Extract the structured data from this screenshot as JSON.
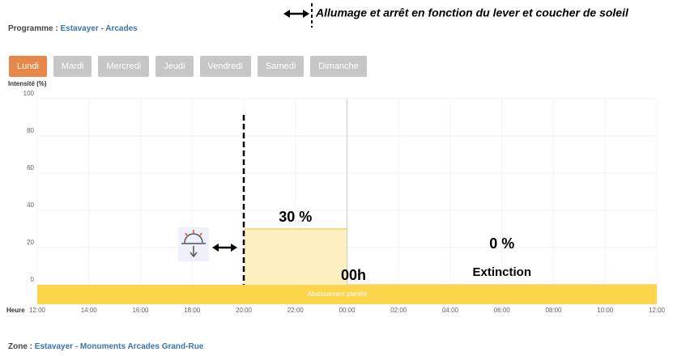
{
  "header": {
    "label": "Programme : ",
    "name": "Estavayer - Arcades"
  },
  "annotation": "Allumage et arrêt en fonction du lever et coucher de soleil",
  "days": [
    "Lundi",
    "Mardi",
    "Mercredi",
    "Jeudi",
    "Vendredi",
    "Samedi",
    "Dimanche"
  ],
  "active_day": "Lundi",
  "chart_data": {
    "type": "area",
    "ylabel": "Intensité (%)",
    "xlabel": "Heure",
    "ylim": [
      0,
      100
    ],
    "yticks": [
      0,
      20,
      40,
      60,
      80,
      100
    ],
    "xticks": [
      "12:00",
      "14:00",
      "16:00",
      "18:00",
      "20:00",
      "22:00",
      "00:00",
      "02:00",
      "04:00",
      "06:00",
      "08:00",
      "10:00",
      "12:00"
    ],
    "segments": [
      {
        "start": "20:00",
        "end": "00:00",
        "value": 30,
        "value_label": "30 %"
      },
      {
        "start": "00:00",
        "end": "12:00",
        "value": 0,
        "value_label": "0 %",
        "label": "Extinction"
      }
    ],
    "band": "Abaissement planifié",
    "midnight_label": "00h",
    "color": "#fdefc0",
    "line_color": "#f3d35c",
    "band_color": "#fdd54b"
  },
  "footer": {
    "label": "Zone : ",
    "name": "Estavayer - Monuments Arcades Grand-Rue"
  }
}
